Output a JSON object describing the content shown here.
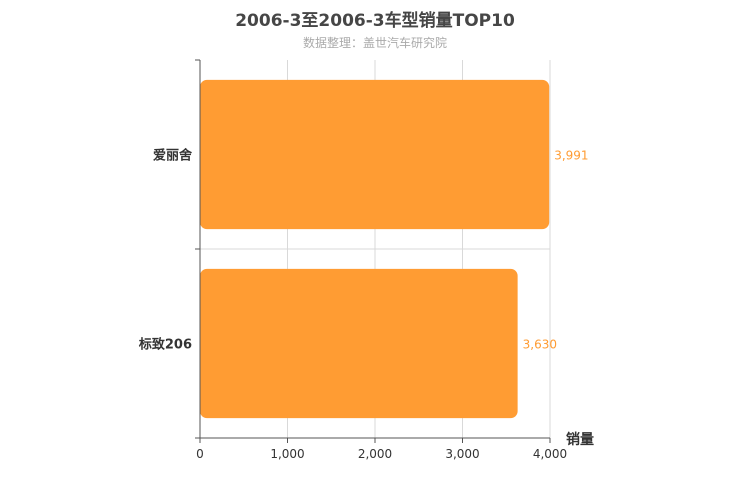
{
  "chart_data": {
    "type": "bar",
    "orientation": "horizontal",
    "title": "2006-3至2006-3车型销量TOP10",
    "subtitle": "数据整理：盖世汽车研究院",
    "xlabel": "销量",
    "ylabel": "",
    "categories": [
      "爱丽舍",
      "标致206"
    ],
    "values": [
      3991,
      3630
    ],
    "value_labels": [
      "3,991",
      "3,630"
    ],
    "xlim": [
      0,
      4000
    ],
    "x_ticks": [
      0,
      1000,
      2000,
      3000,
      4000
    ],
    "x_tick_labels": [
      "0",
      "1,000",
      "2,000",
      "3,000",
      "4,000"
    ],
    "grid": true,
    "bar_color": "#ff9c33",
    "label_color": "#ff9c33"
  }
}
